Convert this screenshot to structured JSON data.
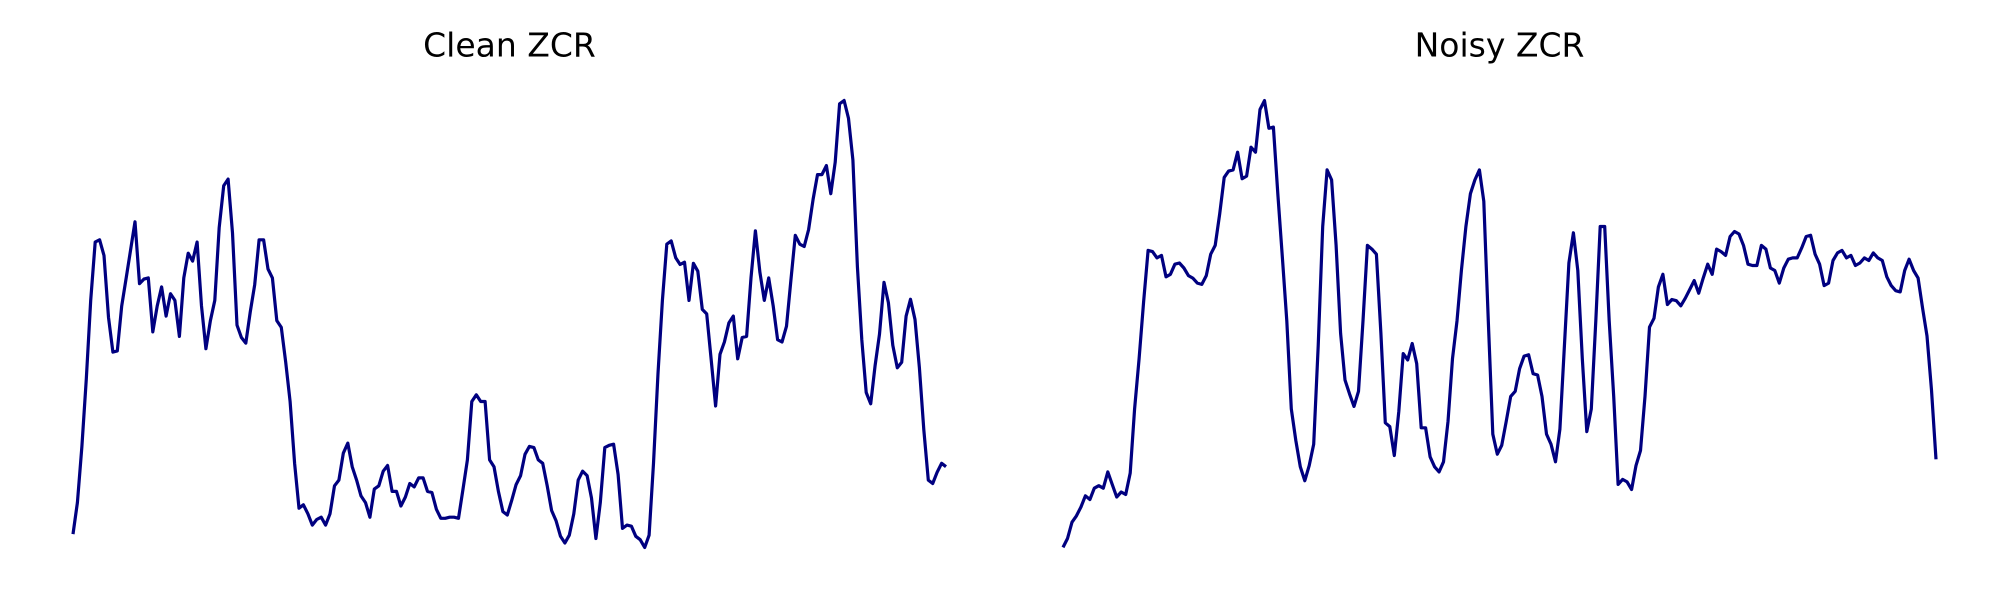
{
  "chart_data": [
    {
      "type": "line",
      "title": "Clean ZCR",
      "color": "#000080",
      "ylim": [
        -10,
        428
      ],
      "values": [
        22,
        50,
        100,
        160,
        230,
        282,
        284,
        270,
        215,
        184,
        185,
        225,
        250,
        275,
        300,
        245,
        249,
        250,
        202,
        225,
        242,
        216,
        236,
        230,
        198,
        250,
        272,
        265,
        282,
        225,
        187,
        212,
        230,
        295,
        332,
        338,
        290,
        208,
        197,
        192,
        220,
        244,
        284,
        284,
        258,
        250,
        212,
        206,
        175,
        140,
        85,
        45,
        48,
        40,
        30,
        35,
        37,
        30,
        40,
        65,
        70,
        94,
        103,
        82,
        70,
        56,
        50,
        37,
        62,
        65,
        78,
        83,
        60,
        60,
        47,
        55,
        67,
        64,
        72,
        72,
        60,
        59,
        44,
        36,
        36,
        37,
        37,
        36,
        62,
        88,
        140,
        146,
        140,
        140,
        88,
        82,
        60,
        42,
        39,
        52,
        66,
        74,
        93,
        100,
        99,
        88,
        85,
        65,
        43,
        34,
        20,
        14,
        21,
        40,
        70,
        78,
        74,
        54,
        18,
        50,
        99,
        101,
        102,
        75,
        27,
        30,
        29,
        20,
        17,
        10,
        21,
        85,
        165,
        230,
        280,
        283,
        268,
        262,
        264,
        230,
        263,
        256,
        222,
        218,
        178,
        136,
        182,
        193,
        210,
        216,
        178,
        197,
        198,
        250,
        292,
        255,
        230,
        250,
        225,
        195,
        193,
        207,
        248,
        288,
        280,
        278,
        293,
        320,
        342,
        342,
        350,
        325,
        353,
        405,
        408,
        392,
        355,
        260,
        195,
        148,
        138,
        172,
        200,
        246,
        228,
        190,
        170,
        175,
        216,
        231,
        213,
        170,
        115,
        70,
        67,
        77,
        85,
        82
      ]
    },
    {
      "type": "line",
      "title": "Noisy ZCR",
      "color": "#000080",
      "ylim": [
        -8,
        383
      ],
      "values": [
        10,
        17,
        30,
        35,
        42,
        51,
        48,
        57,
        59,
        57,
        70,
        60,
        50,
        54,
        52,
        69,
        120,
        160,
        205,
        246,
        245,
        240,
        242,
        225,
        227,
        235,
        236,
        232,
        226,
        224,
        220,
        219,
        226,
        243,
        250,
        275,
        304,
        309,
        310,
        324,
        303,
        305,
        328,
        324,
        358,
        365,
        343,
        344,
        290,
        240,
        190,
        120,
        95,
        74,
        63,
        75,
        92,
        170,
        265,
        310,
        302,
        250,
        180,
        143,
        132,
        122,
        134,
        190,
        250,
        247,
        243,
        180,
        109,
        106,
        83,
        118,
        164,
        159,
        172,
        156,
        105,
        105,
        82,
        74,
        70,
        78,
        110,
        160,
        190,
        230,
        265,
        291,
        302,
        310,
        285,
        190,
        100,
        84,
        91,
        110,
        130,
        134,
        152,
        162,
        163,
        148,
        147,
        130,
        100,
        92,
        78,
        104,
        170,
        236,
        260,
        230,
        160,
        102,
        120,
        190,
        265,
        265,
        190,
        130,
        60,
        64,
        62,
        56,
        75,
        87,
        130,
        185,
        192,
        217,
        227,
        203,
        207,
        206,
        202,
        208,
        215,
        222,
        212,
        224,
        235,
        227,
        247,
        245,
        242,
        257,
        261,
        259,
        250,
        235,
        234,
        234,
        250,
        247,
        232,
        230,
        220,
        232,
        239,
        240,
        240,
        248,
        257,
        258,
        243,
        235,
        218,
        220,
        238,
        244,
        246,
        240,
        242,
        234,
        236,
        240,
        238,
        244,
        240,
        238,
        225,
        218,
        214,
        213,
        230,
        239,
        230,
        224,
        200,
        178,
        135,
        80
      ]
    }
  ]
}
